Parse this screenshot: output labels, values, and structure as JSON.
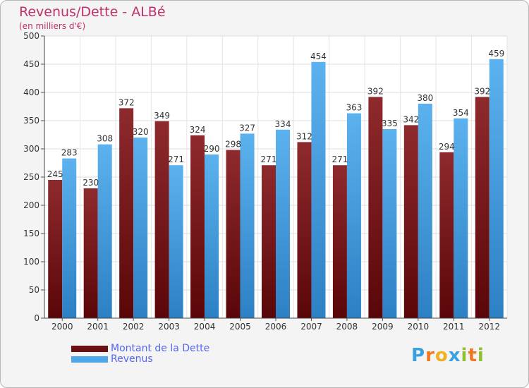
{
  "header": {
    "title": "Revenus/Dette - ALBé",
    "subtitle": "(en milliers d'€)"
  },
  "chart_data": {
    "type": "bar",
    "title": "Revenus/Dette - ALBé",
    "subtitle": "(en milliers d'€)",
    "xlabel": "",
    "ylabel": "",
    "ylim": [
      0,
      500
    ],
    "yticks": [
      0,
      50,
      100,
      150,
      200,
      250,
      300,
      350,
      400,
      450,
      500
    ],
    "grid": true,
    "categories": [
      "2000",
      "2001",
      "2002",
      "2003",
      "2004",
      "2005",
      "2006",
      "2007",
      "2008",
      "2009",
      "2010",
      "2011",
      "2012"
    ],
    "series": [
      {
        "name": "Montant de la Dette",
        "color": "#7a1a1e",
        "values": [
          245,
          230,
          372,
          349,
          324,
          298,
          271,
          312,
          271,
          392,
          342,
          294,
          392
        ]
      },
      {
        "name": "Revenus",
        "color": "#4da6e8",
        "values": [
          283,
          308,
          320,
          271,
          290,
          327,
          334,
          454,
          363,
          335,
          380,
          354,
          459
        ]
      }
    ],
    "legend_position": "bottom-left"
  },
  "legend": {
    "items": [
      {
        "label": "Montant de la Dette",
        "color": "#6b0f12"
      },
      {
        "label": "Revenus",
        "color": "#4da6e8"
      }
    ]
  },
  "logo": {
    "letters": [
      "P",
      "r",
      "o",
      "x",
      "i",
      "t",
      "i"
    ],
    "colors": [
      "#3aa0e0",
      "#f07820",
      "#f0b020",
      "#3aa0e0",
      "#90c030",
      "#f07820",
      "#90c030"
    ]
  }
}
